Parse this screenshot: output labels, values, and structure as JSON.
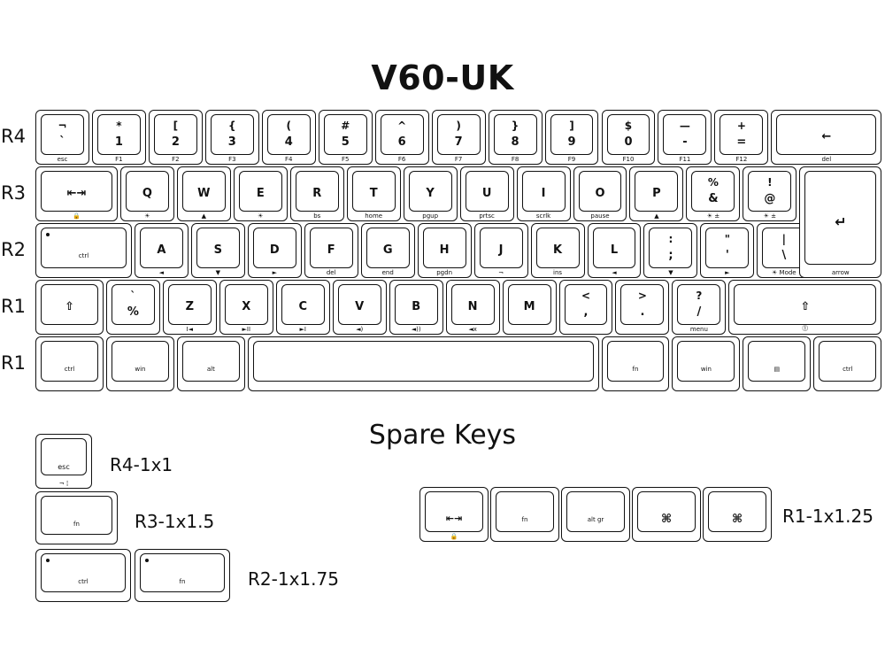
{
  "title": "V60-UK",
  "spare_title": "Spare Keys",
  "row_labels": [
    "R4",
    "R3",
    "R2",
    "R1",
    "R1"
  ],
  "r4": [
    {
      "top": "¬",
      "main": "`",
      "sub": "esc"
    },
    {
      "top": "*",
      "main": "1",
      "sub": "F1"
    },
    {
      "top": "[",
      "main": "2",
      "sub": "F2"
    },
    {
      "top": "{",
      "main": "3",
      "sub": "F3"
    },
    {
      "top": "(",
      "main": "4",
      "sub": "F4"
    },
    {
      "top": "#",
      "main": "5",
      "sub": "F5"
    },
    {
      "top": "^",
      "main": "6",
      "sub": "F6"
    },
    {
      "top": ")",
      "main": "7",
      "sub": "F7"
    },
    {
      "top": "}",
      "main": "8",
      "sub": "F8"
    },
    {
      "top": "]",
      "main": "9",
      "sub": "F9"
    },
    {
      "top": "$",
      "main": "0",
      "sub": "F10"
    },
    {
      "top": "—",
      "main": "-",
      "sub": "F11"
    },
    {
      "top": "+",
      "main": "=",
      "sub": "F12"
    },
    {
      "top": "",
      "main": "←",
      "sub": "del"
    }
  ],
  "r3": [
    {
      "top": "",
      "main": "⇤⇥",
      "sub": "🔒"
    },
    {
      "top": "",
      "main": "Q",
      "sub": "☀"
    },
    {
      "top": "",
      "main": "W",
      "sub": "▲"
    },
    {
      "top": "",
      "main": "E",
      "sub": "☀"
    },
    {
      "top": "",
      "main": "R",
      "sub": "bs"
    },
    {
      "top": "",
      "main": "T",
      "sub": "home"
    },
    {
      "top": "",
      "main": "Y",
      "sub": "pgup"
    },
    {
      "top": "",
      "main": "U",
      "sub": "prtsc"
    },
    {
      "top": "",
      "main": "I",
      "sub": "scrlk"
    },
    {
      "top": "",
      "main": "O",
      "sub": "pause"
    },
    {
      "top": "",
      "main": "P",
      "sub": "▲"
    },
    {
      "top": "%",
      "main": "&",
      "sub": "☀ ±"
    },
    {
      "top": "!",
      "main": "@",
      "sub": "☀ ±"
    }
  ],
  "r2": [
    {
      "top": "",
      "main": "ctrl",
      "sub": ""
    },
    {
      "top": "",
      "main": "A",
      "sub": "◄"
    },
    {
      "top": "",
      "main": "S",
      "sub": "▼"
    },
    {
      "top": "",
      "main": "D",
      "sub": "►"
    },
    {
      "top": "",
      "main": "F",
      "sub": "del"
    },
    {
      "top": "",
      "main": "G",
      "sub": "end"
    },
    {
      "top": "",
      "main": "H",
      "sub": "pgdn"
    },
    {
      "top": "",
      "main": "J",
      "sub": "¬"
    },
    {
      "top": "",
      "main": "K",
      "sub": "ins"
    },
    {
      "top": "",
      "main": "L",
      "sub": "◄"
    },
    {
      "top": ":",
      "main": ";",
      "sub": "▼"
    },
    {
      "top": "\"",
      "main": "'",
      "sub": "►"
    },
    {
      "top": "|",
      "main": "\\",
      "sub": "☀ Mode"
    }
  ],
  "enter": {
    "main": "↵",
    "sub": "arrow"
  },
  "r1a": [
    {
      "top": "",
      "main": "⇧",
      "sub": ""
    },
    {
      "top": "`",
      "main": "%",
      "sub": ""
    },
    {
      "top": "",
      "main": "Z",
      "sub": "I◄"
    },
    {
      "top": "",
      "main": "X",
      "sub": "►II"
    },
    {
      "top": "",
      "main": "C",
      "sub": "►I"
    },
    {
      "top": "",
      "main": "V",
      "sub": "◄)"
    },
    {
      "top": "",
      "main": "B",
      "sub": "◄))"
    },
    {
      "top": "",
      "main": "N",
      "sub": "◄x"
    },
    {
      "top": "",
      "main": "M",
      "sub": ""
    },
    {
      "top": "<",
      "main": ",",
      "sub": ""
    },
    {
      "top": ">",
      "main": ".",
      "sub": ""
    },
    {
      "top": "?",
      "main": "/",
      "sub": "menu"
    },
    {
      "top": "",
      "main": "⇧",
      "sub": "⓵"
    }
  ],
  "r1b": [
    {
      "main": "ctrl"
    },
    {
      "main": "win"
    },
    {
      "main": "alt"
    },
    {
      "main": ""
    },
    {
      "main": "fn"
    },
    {
      "main": "win"
    },
    {
      "main": "▤"
    },
    {
      "main": "ctrl"
    }
  ],
  "spares": {
    "r4_key": {
      "main": "esc",
      "sub": "¬ ¦",
      "label": "R4-1x1"
    },
    "r3_key": {
      "main": "fn",
      "label": "R3-1x1.5"
    },
    "r2_keys": [
      {
        "main": "ctrl"
      },
      {
        "main": "fn"
      }
    ],
    "r2_label": "R2-1x1.75",
    "r1_keys": [
      {
        "main": "⇤⇥",
        "sub": "🔒"
      },
      {
        "main": "fn"
      },
      {
        "main": "alt gr"
      },
      {
        "main": "⌘"
      },
      {
        "main": "⌘"
      }
    ],
    "r1_label": "R1-1x1.25"
  }
}
